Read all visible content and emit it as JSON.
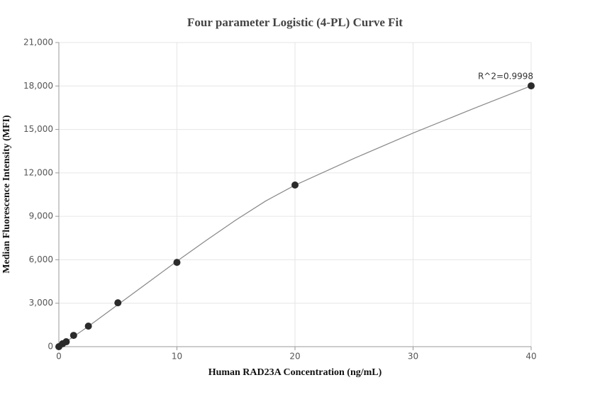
{
  "chart_data": {
    "type": "scatter",
    "title": "Four parameter Logistic (4-PL) Curve Fit",
    "x_label": "Human RAD23A Concentration (ng/mL)",
    "y_label": "Median Fluorescence Intensity (MFI)",
    "annotation": "R^2=0.9998",
    "xlim": [
      0,
      40
    ],
    "xticks": [
      0,
      10,
      20,
      30,
      40
    ],
    "ylim": [
      0,
      21000
    ],
    "yticks": [
      0,
      {
        "value": 3000,
        "label": "3,000"
      },
      {
        "value": 6000,
        "label": "6,000"
      },
      {
        "value": 9000,
        "label": "9,000"
      },
      {
        "value": 12000,
        "label": "12,000"
      },
      {
        "value": 15000,
        "label": "15,000"
      },
      {
        "value": 18000,
        "label": "18,000"
      },
      {
        "value": 21000,
        "label": "21,000"
      }
    ],
    "grid": true,
    "series": [
      {
        "color": "#2b2b2b",
        "x": [
          0,
          0.3125,
          0.625,
          1.25,
          2.5,
          5,
          10,
          20,
          40
        ],
        "values": [
          0,
          200,
          340,
          780,
          1420,
          3030,
          5820,
          11160,
          18010
        ]
      }
    ],
    "curve": {
      "color": "#888888",
      "x": [
        0,
        1,
        2.5,
        5,
        7.5,
        10,
        12.5,
        15,
        17.5,
        20,
        25,
        30,
        35,
        40
      ],
      "values": [
        0,
        560,
        1400,
        2900,
        4400,
        5900,
        7350,
        8750,
        10050,
        11150,
        13000,
        14750,
        16400,
        18010
      ]
    }
  }
}
